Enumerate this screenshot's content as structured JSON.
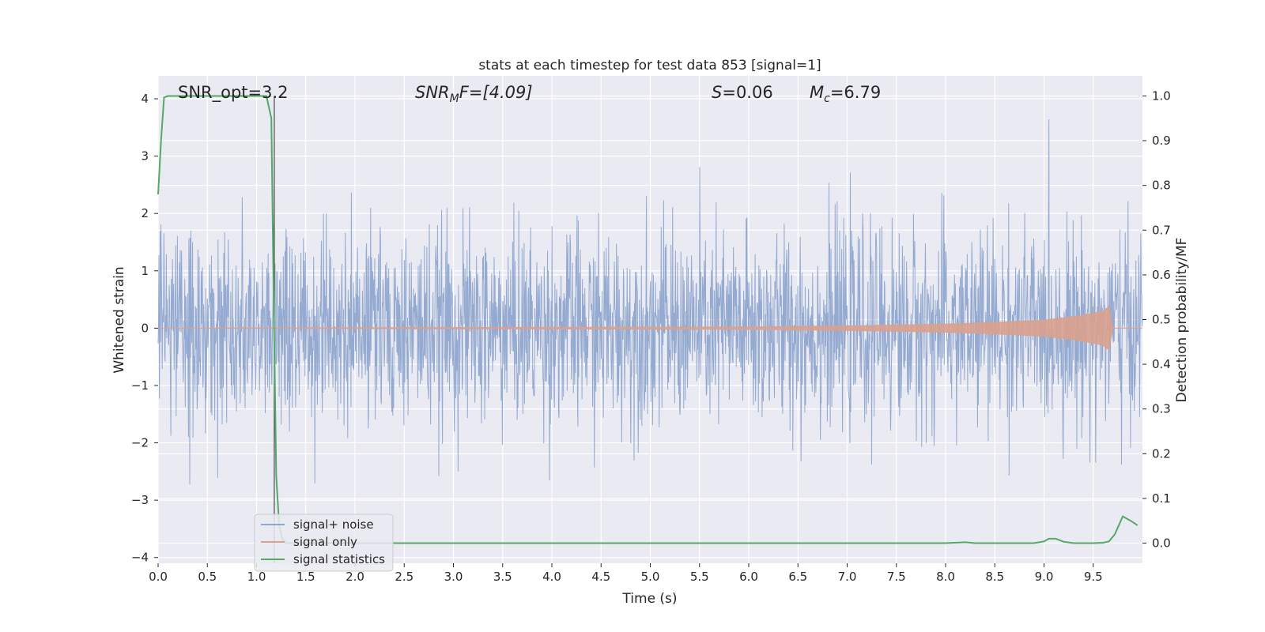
{
  "chart_data": {
    "type": "line",
    "title": "stats at each timestep for test data 853 [signal=1]",
    "xlabel": "Time (s)",
    "ylabel": "Whitened strain",
    "y2label": "Detection probability/MF",
    "xlim": [
      0,
      10
    ],
    "ylim": [
      -4.1,
      4.4
    ],
    "y2lim": [
      -0.045,
      1.045
    ],
    "xticks": [
      0.0,
      0.5,
      1.0,
      1.5,
      2.0,
      2.5,
      3.0,
      3.5,
      4.0,
      4.5,
      5.0,
      5.5,
      6.0,
      6.5,
      7.0,
      7.5,
      8.0,
      8.5,
      9.0,
      9.5
    ],
    "xtick_labels": [
      "0.0",
      "0.5",
      "1.0",
      "1.5",
      "2.0",
      "2.5",
      "3.0",
      "3.5",
      "4.0",
      "4.5",
      "5.0",
      "5.5",
      "6.0",
      "6.5",
      "7.0",
      "7.5",
      "8.0",
      "8.5",
      "9.0",
      "9.5"
    ],
    "yticks": [
      4,
      3,
      2,
      1,
      0,
      -1,
      -2,
      -3,
      -4
    ],
    "ytick_labels": [
      "4",
      "3",
      "2",
      "1",
      "0",
      "−1",
      "−2",
      "−3",
      "−4"
    ],
    "y2ticks": [
      1.0,
      0.9,
      0.8,
      0.7,
      0.6,
      0.5,
      0.4,
      0.3,
      0.2,
      0.1,
      0.0
    ],
    "y2tick_labels": [
      "1.0",
      "0.9",
      "0.8",
      "0.7",
      "0.6",
      "0.5",
      "0.4",
      "0.3",
      "0.2",
      "0.1",
      "0.0"
    ],
    "grid": true,
    "legend_position": "lower-left",
    "annotations": {
      "snr_opt": "SNR_opt=3.2",
      "snr_mf_base": "SNR",
      "snr_mf_sub": "M",
      "snr_mf_tail": "F=[4.09]",
      "s_italic": "S",
      "s_value": "=0.06",
      "mc_italic": "M",
      "mc_sub": "c",
      "mc_value": "=6.79"
    },
    "vline_x": 1.18,
    "series": [
      {
        "name": "signal+ noise",
        "color": "#8fa6cf",
        "kind": "noise",
        "y_range": [
          -3.72,
          4.0
        ]
      },
      {
        "name": "signal only",
        "color": "#d9a18e",
        "kind": "chirp",
        "x": [
          0.0,
          6.0,
          7.0,
          8.0,
          8.5,
          9.0,
          9.3,
          9.5,
          9.6,
          9.66,
          9.7,
          10.0
        ],
        "amplitude": [
          0.0,
          0.02,
          0.04,
          0.07,
          0.1,
          0.14,
          0.2,
          0.26,
          0.3,
          0.38,
          0.0,
          0.0
        ]
      },
      {
        "name": "signal statistics",
        "color": "#55a868",
        "axis": "right",
        "x": [
          0.0,
          0.03,
          0.06,
          0.1,
          0.2,
          0.5,
          1.0,
          1.1,
          1.15,
          1.18,
          1.2,
          1.23,
          1.26,
          1.3,
          1.5,
          2.0,
          8.0,
          8.2,
          8.3,
          8.5,
          8.9,
          9.0,
          9.05,
          9.12,
          9.2,
          9.3,
          9.5,
          9.6,
          9.66,
          9.72,
          9.8,
          9.88,
          9.95
        ],
        "y": [
          0.78,
          0.9,
          0.997,
          1.0,
          1.0,
          1.0,
          1.0,
          1.0,
          0.95,
          0.45,
          0.15,
          0.04,
          0.01,
          0.0,
          0.0,
          0.0,
          0.0,
          0.002,
          0.0,
          0.0,
          0.0,
          0.004,
          0.01,
          0.01,
          0.003,
          0.0,
          0.0,
          0.001,
          0.004,
          0.02,
          0.06,
          0.05,
          0.04
        ]
      }
    ]
  }
}
